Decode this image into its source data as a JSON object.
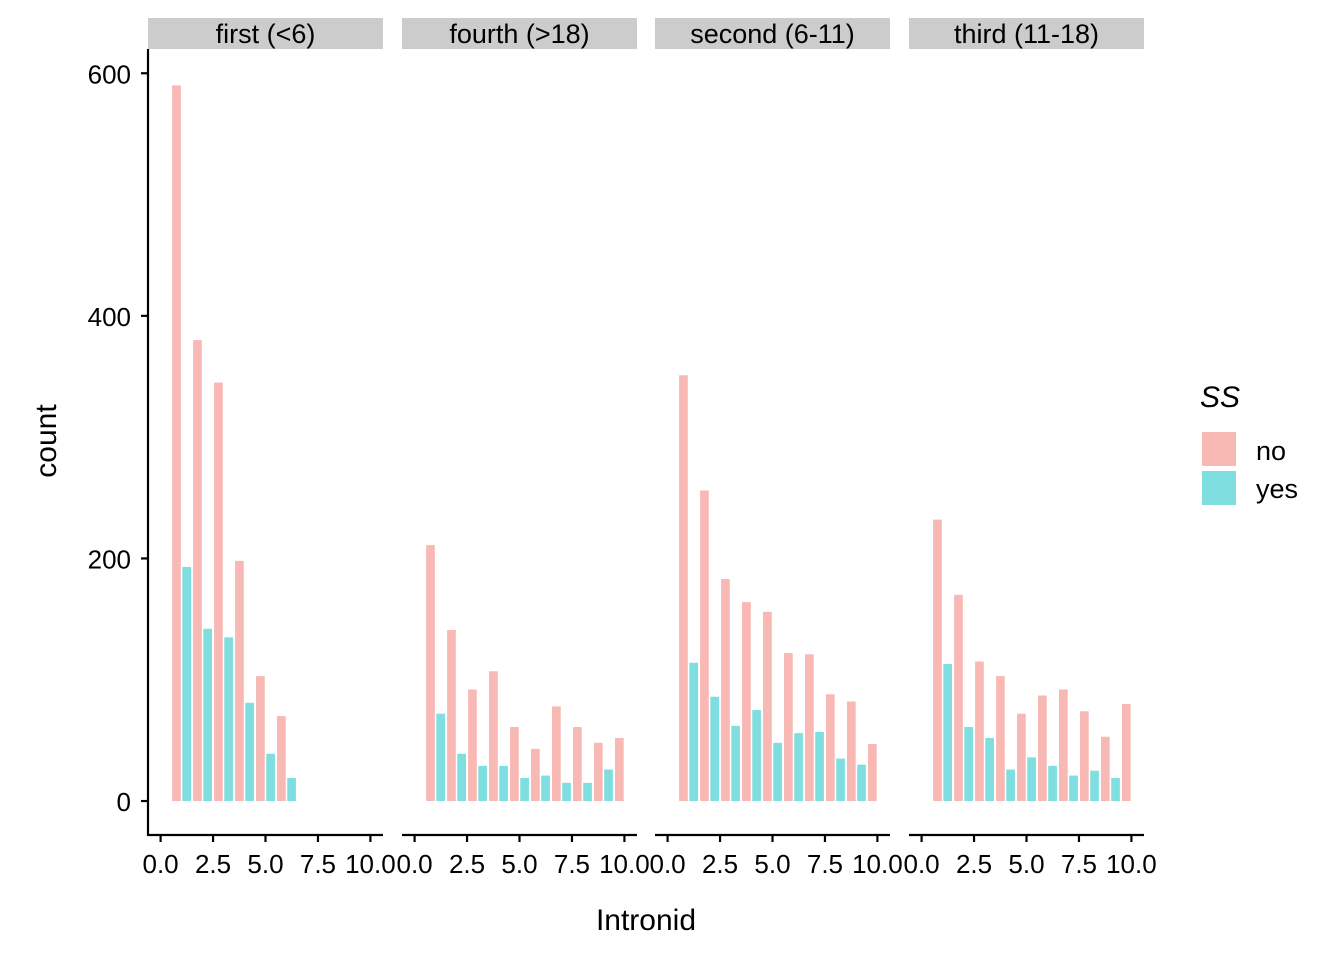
{
  "chart_data": {
    "type": "bar",
    "xlabel": "Intronid",
    "ylabel": "count",
    "ylim": [
      -28,
      620
    ],
    "xlim": [
      -0.6,
      10.6
    ],
    "y_ticks": [
      0,
      200,
      400,
      600
    ],
    "y_tick_labels": [
      "0",
      "200",
      "400",
      "600"
    ],
    "x_ticks": [
      0,
      2.5,
      5,
      7.5,
      10
    ],
    "x_tick_labels": [
      "0.0",
      "2.5",
      "5.0",
      "7.5",
      "10.0"
    ],
    "legend": {
      "title": "SS",
      "position": "right",
      "entries": [
        {
          "label": "no",
          "color": "#f8b8b4"
        },
        {
          "label": "yes",
          "color": "#7fdfe0"
        }
      ]
    },
    "grid": false,
    "facets": [
      {
        "label": "first (<6)",
        "series": [
          {
            "name": "no",
            "x": [
              1,
              2,
              3,
              4,
              5,
              6
            ],
            "values": [
              590,
              380,
              345,
              198,
              103,
              70
            ]
          },
          {
            "name": "yes",
            "x": [
              1,
              2,
              3,
              4,
              5,
              6
            ],
            "values": [
              193,
              142,
              135,
              81,
              39,
              19
            ]
          }
        ]
      },
      {
        "label": "fourth (>18)",
        "series": [
          {
            "name": "no",
            "x": [
              1,
              2,
              3,
              4,
              5,
              6,
              7,
              8,
              9,
              10
            ],
            "values": [
              211,
              141,
              92,
              107,
              61,
              43,
              78,
              61,
              48,
              52
            ]
          },
          {
            "name": "yes",
            "x": [
              1,
              2,
              3,
              4,
              5,
              6,
              7,
              8,
              9
            ],
            "values": [
              72,
              39,
              29,
              29,
              19,
              21,
              15,
              15,
              26
            ]
          }
        ]
      },
      {
        "label": "second (6-11)",
        "series": [
          {
            "name": "no",
            "x": [
              1,
              2,
              3,
              4,
              5,
              6,
              7,
              8,
              9,
              10
            ],
            "values": [
              351,
              256,
              183,
              164,
              156,
              122,
              121,
              88,
              82,
              47
            ]
          },
          {
            "name": "yes",
            "x": [
              1,
              2,
              3,
              4,
              5,
              6,
              7,
              8,
              9
            ],
            "values": [
              114,
              86,
              62,
              75,
              48,
              56,
              57,
              35,
              30
            ]
          }
        ]
      },
      {
        "label": "third (11-18)",
        "series": [
          {
            "name": "no",
            "x": [
              1,
              2,
              3,
              4,
              5,
              6,
              7,
              8,
              9,
              10
            ],
            "values": [
              232,
              170,
              115,
              103,
              72,
              87,
              92,
              74,
              53,
              80
            ]
          },
          {
            "name": "yes",
            "x": [
              1,
              2,
              3,
              4,
              5,
              6,
              7,
              8,
              9
            ],
            "values": [
              113,
              61,
              52,
              26,
              36,
              29,
              21,
              25,
              19
            ]
          }
        ]
      }
    ]
  }
}
